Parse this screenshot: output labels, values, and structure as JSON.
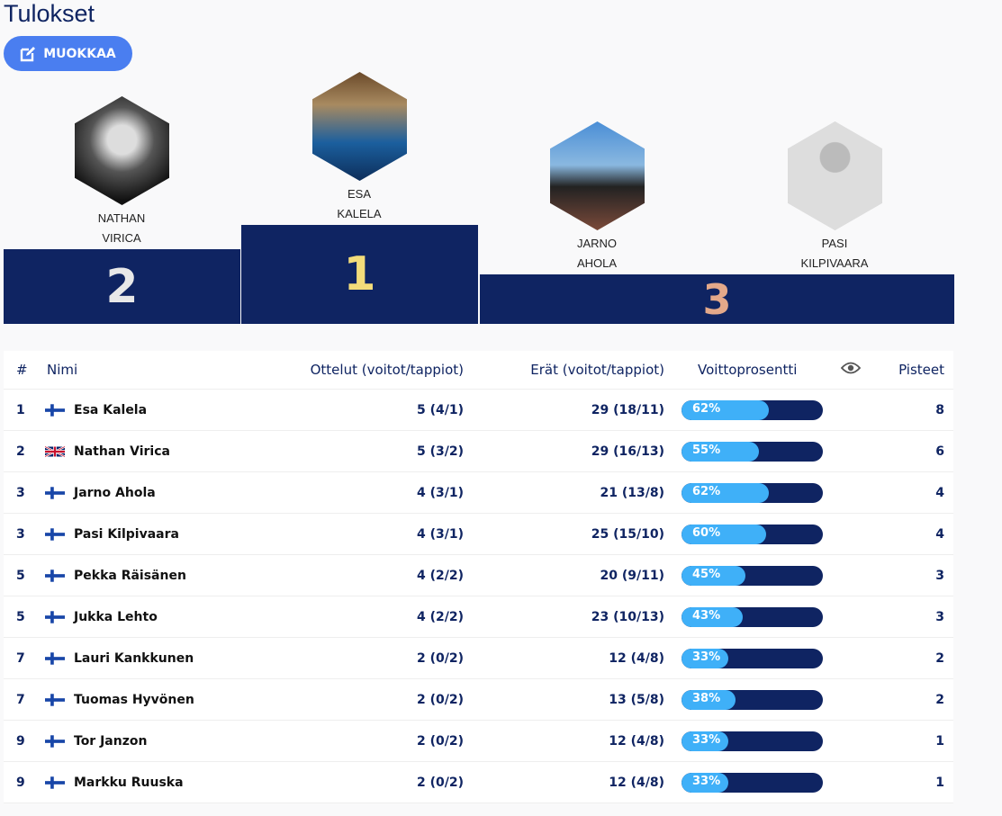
{
  "title": "Tulokset",
  "edit_label": "MUOKKAA",
  "podium": [
    {
      "place": "2",
      "first": "NATHAN",
      "last": "VIRICA"
    },
    {
      "place": "1",
      "first": "ESA",
      "last": "KALELA"
    },
    {
      "place": "3",
      "first": "JARNO",
      "last": "AHOLA"
    },
    {
      "place": "3",
      "first": "PASI",
      "last": "KILPIVAARA"
    }
  ],
  "headers": {
    "rank": "#",
    "name": "Nimi",
    "matches": "Ottelut (voitot/tappiot)",
    "frames": "Erät (voitot/tappiot)",
    "winpct": "Voittoprosentti",
    "points": "Pisteet"
  },
  "rows": [
    {
      "rank": "1",
      "flag": "fi",
      "name": "Esa Kalela",
      "matches": "5 (4/1)",
      "frames": "29 (18/11)",
      "pct": 62,
      "pct_label": "62%",
      "points": "8"
    },
    {
      "rank": "2",
      "flag": "gb",
      "name": "Nathan Virica",
      "matches": "5 (3/2)",
      "frames": "29 (16/13)",
      "pct": 55,
      "pct_label": "55%",
      "points": "6"
    },
    {
      "rank": "3",
      "flag": "fi",
      "name": "Jarno Ahola",
      "matches": "4 (3/1)",
      "frames": "21 (13/8)",
      "pct": 62,
      "pct_label": "62%",
      "points": "4"
    },
    {
      "rank": "3",
      "flag": "fi",
      "name": "Pasi Kilpivaara",
      "matches": "4 (3/1)",
      "frames": "25 (15/10)",
      "pct": 60,
      "pct_label": "60%",
      "points": "4"
    },
    {
      "rank": "5",
      "flag": "fi",
      "name": "Pekka Räisänen",
      "matches": "4 (2/2)",
      "frames": "20 (9/11)",
      "pct": 45,
      "pct_label": "45%",
      "points": "3"
    },
    {
      "rank": "5",
      "flag": "fi",
      "name": "Jukka Lehto",
      "matches": "4 (2/2)",
      "frames": "23 (10/13)",
      "pct": 43,
      "pct_label": "43%",
      "points": "3"
    },
    {
      "rank": "7",
      "flag": "fi",
      "name": "Lauri Kankkunen",
      "matches": "2 (0/2)",
      "frames": "12 (4/8)",
      "pct": 33,
      "pct_label": "33%",
      "points": "2"
    },
    {
      "rank": "7",
      "flag": "fi",
      "name": "Tuomas Hyvönen",
      "matches": "2 (0/2)",
      "frames": "13 (5/8)",
      "pct": 38,
      "pct_label": "38%",
      "points": "2"
    },
    {
      "rank": "9",
      "flag": "fi",
      "name": "Tor Janzon",
      "matches": "2 (0/2)",
      "frames": "12 (4/8)",
      "pct": 33,
      "pct_label": "33%",
      "points": "1"
    },
    {
      "rank": "9",
      "flag": "fi",
      "name": "Markku Ruuska",
      "matches": "2 (0/2)",
      "frames": "12 (4/8)",
      "pct": 33,
      "pct_label": "33%",
      "points": "1"
    }
  ]
}
